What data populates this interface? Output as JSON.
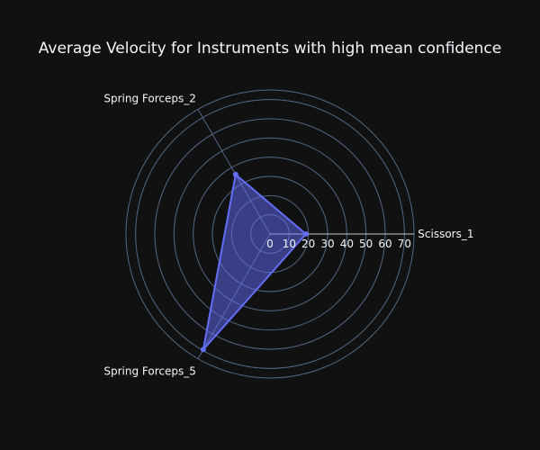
{
  "chart_data": {
    "type": "radar",
    "title": "Average Velocity for Instruments with high mean confidence",
    "categories": [
      "Scissors_1",
      "Spring Forceps_2",
      "Spring Forceps_5"
    ],
    "angles_deg": [
      0,
      120,
      240
    ],
    "series": [
      {
        "values": [
          18.7,
          35.8,
          69.5
        ],
        "color": "#636efa",
        "fill": "toself"
      }
    ],
    "radial_range": [
      0,
      75
    ],
    "radial_ticks": [
      0,
      10,
      20,
      30,
      40,
      50,
      60,
      70
    ],
    "grid": true,
    "legend": false,
    "colors": {
      "background": "#111111",
      "grid": "#506784",
      "text": "#f2f5fa"
    }
  }
}
